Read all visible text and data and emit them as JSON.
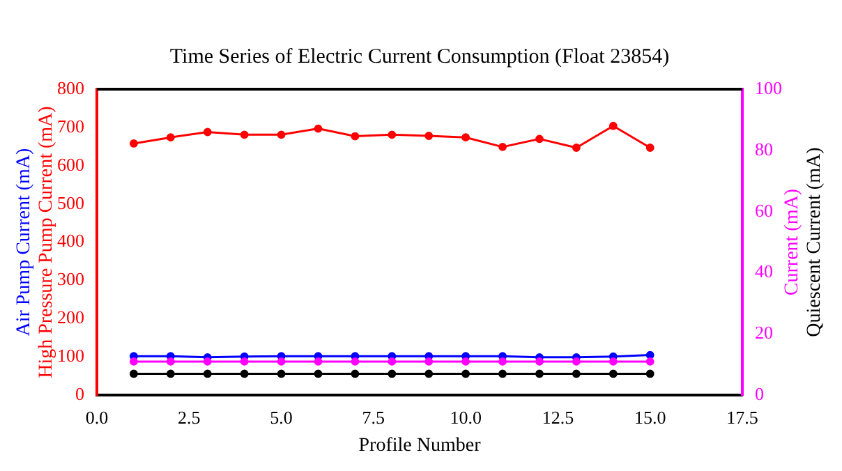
{
  "chart_data": {
    "type": "line",
    "title": "Time Series of Electric Current Consumption (Float 23854)",
    "xlabel": "Profile Number",
    "x": [
      1,
      2,
      3,
      4,
      5,
      6,
      7,
      8,
      9,
      10,
      11,
      12,
      13,
      14,
      15
    ],
    "series": [
      {
        "name": "High Pressure Pump Current (mA)",
        "color": "#ff0000",
        "values": [
          658,
          674,
          688,
          681,
          681,
          697,
          677,
          681,
          678,
          674,
          649,
          670,
          647,
          704,
          647
        ]
      },
      {
        "name": "Air Pump Current (mA)",
        "color": "#0000ff",
        "values": [
          102,
          102,
          99,
          101,
          102,
          102,
          102,
          102,
          102,
          102,
          102,
          99,
          99,
          101,
          105
        ]
      },
      {
        "name": "Current (mA)",
        "color": "#ff00ff",
        "axis": "y2",
        "values": [
          11,
          11,
          11,
          11,
          11,
          11,
          11,
          11,
          11,
          11,
          11,
          11,
          11,
          11,
          11
        ]
      },
      {
        "name": "Quiescent Current (mA)",
        "color": "#000000",
        "axis": "y2",
        "values": [
          7,
          7,
          7,
          7,
          7,
          7,
          7,
          7,
          7,
          7,
          7,
          7,
          7,
          7,
          7
        ]
      }
    ],
    "xlim": [
      0,
      17.5
    ],
    "xticks": [
      {
        "value": 0,
        "label": "0.0"
      },
      {
        "value": 2.5,
        "label": "2.5"
      },
      {
        "value": 5,
        "label": "5.0"
      },
      {
        "value": 7.5,
        "label": "7.5"
      },
      {
        "value": 10,
        "label": "10.0"
      },
      {
        "value": 12.5,
        "label": "12.5"
      },
      {
        "value": 15,
        "label": "15.0"
      },
      {
        "value": 17.5,
        "label": "17.5"
      }
    ],
    "ylim": [
      0,
      800
    ],
    "yticks": [
      0,
      100,
      200,
      300,
      400,
      500,
      600,
      700,
      800
    ],
    "y2lim": [
      0,
      100
    ],
    "y2ticks": [
      0,
      20,
      40,
      60,
      80,
      100
    ],
    "grid": false,
    "legend": false,
    "marker": "circle",
    "line_style": "solid"
  }
}
